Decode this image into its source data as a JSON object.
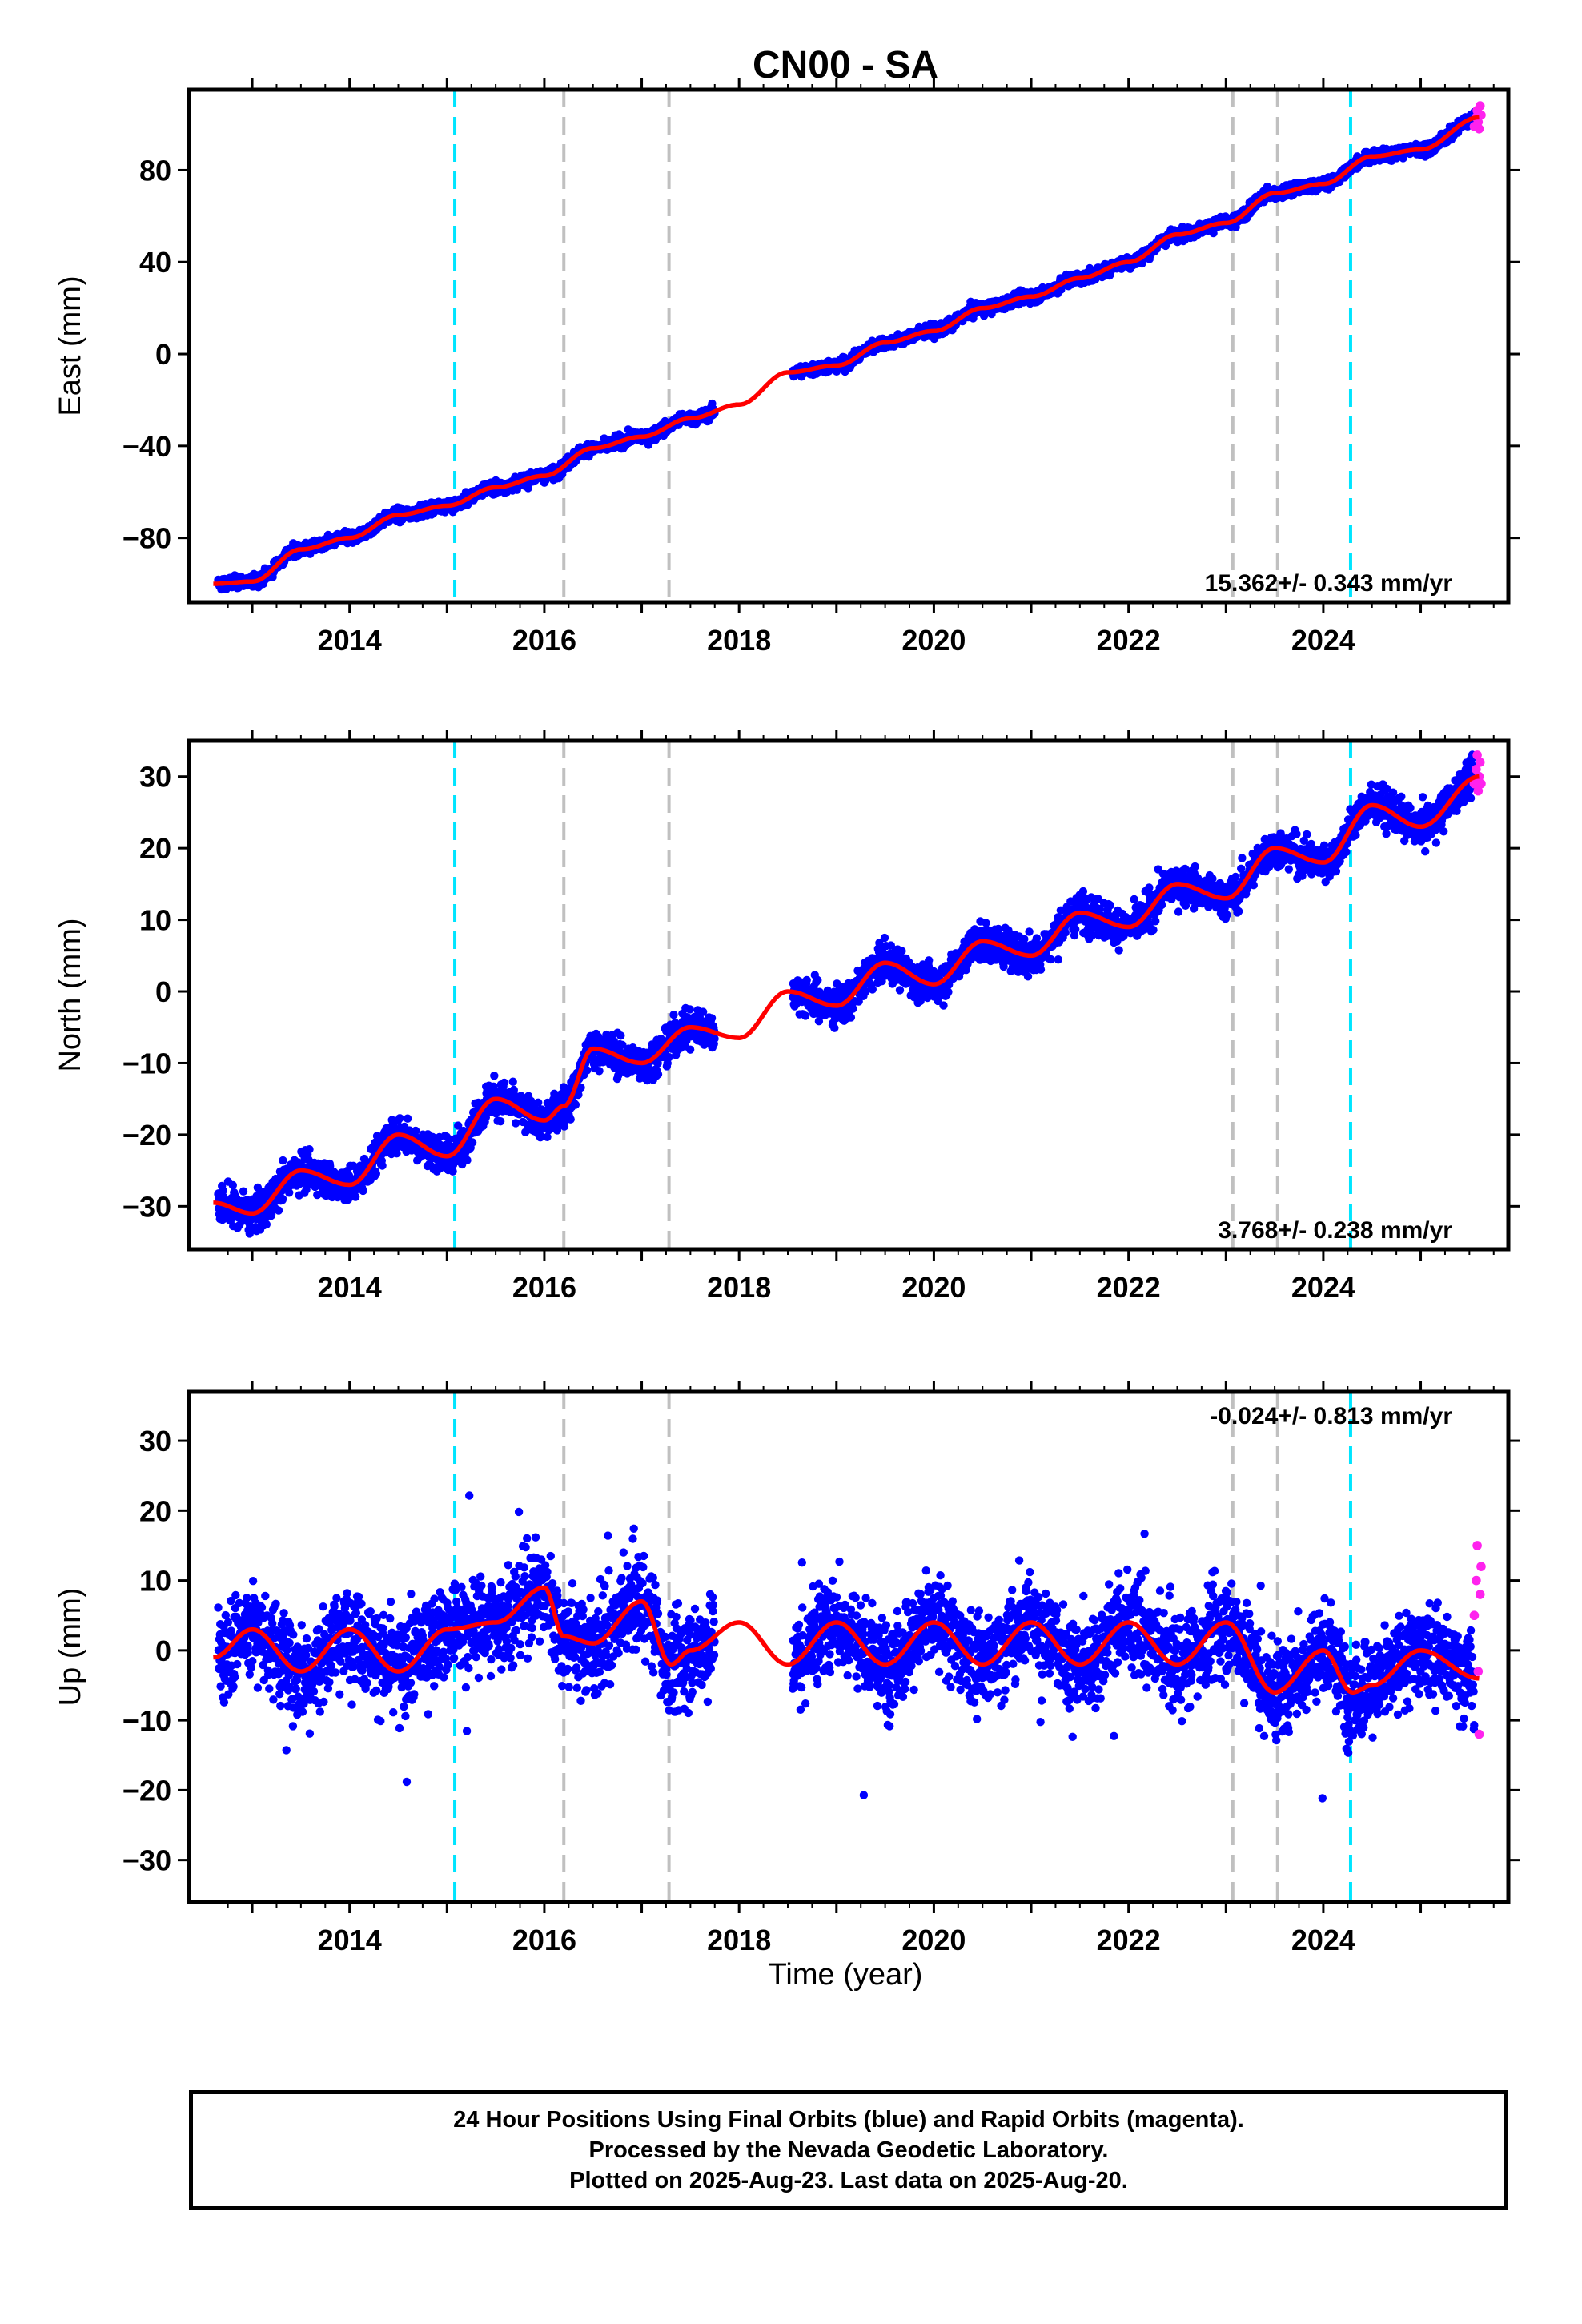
{
  "title": "CN00 - SA",
  "xlabel": "Time (year)",
  "x_tick_labels": [
    "2014",
    "2016",
    "2018",
    "2020",
    "2022",
    "2024"
  ],
  "footer": {
    "line1": "24 Hour Positions Using Final Orbits (blue) and Rapid Orbits (magenta).",
    "line2": "Processed by the Nevada Geodetic Laboratory.",
    "line3": "Plotted on 2025-Aug-23. Last data on 2025-Aug-20."
  },
  "colors": {
    "final_orbits": "#0000ff",
    "rapid_orbits": "#ff22ee",
    "model": "#ff0000",
    "cyan_event": "#00e5ff",
    "gray_event": "#c0c0c0"
  },
  "chart_data": [
    {
      "type": "scatter",
      "ylabel": "East (mm)",
      "xlim": [
        2012.35,
        2025.9
      ],
      "ylim": [
        -108,
        115
      ],
      "yticks": [
        -80,
        -40,
        0,
        40,
        80
      ],
      "rate": "15.362+/- 0.343 mm/yr",
      "cyan_lines": [
        2015.08,
        2024.28
      ],
      "gray_lines": [
        2016.2,
        2017.28,
        2023.07,
        2023.53
      ],
      "data_gap": [
        2017.75,
        2018.55
      ],
      "model_keypoints": [
        [
          2012.6,
          -100
        ],
        [
          2013.0,
          -99
        ],
        [
          2013.5,
          -85
        ],
        [
          2014.0,
          -80
        ],
        [
          2014.5,
          -70
        ],
        [
          2015.0,
          -66
        ],
        [
          2015.5,
          -58
        ],
        [
          2016.0,
          -53
        ],
        [
          2016.5,
          -41
        ],
        [
          2017.0,
          -36
        ],
        [
          2017.5,
          -28
        ],
        [
          2018.0,
          -22
        ],
        [
          2018.5,
          -8
        ],
        [
          2019.0,
          -5
        ],
        [
          2019.5,
          5
        ],
        [
          2020.0,
          10
        ],
        [
          2020.5,
          20
        ],
        [
          2021.0,
          25
        ],
        [
          2021.5,
          33
        ],
        [
          2022.0,
          40
        ],
        [
          2022.5,
          52
        ],
        [
          2023.0,
          57
        ],
        [
          2023.5,
          70
        ],
        [
          2024.0,
          74
        ],
        [
          2024.5,
          86
        ],
        [
          2025.0,
          89
        ],
        [
          2025.6,
          103
        ]
      ],
      "rapid_points": [
        [
          2025.55,
          99
        ],
        [
          2025.57,
          103
        ],
        [
          2025.58,
          106
        ],
        [
          2025.59,
          101
        ],
        [
          2025.6,
          98
        ],
        [
          2025.61,
          108
        ],
        [
          2025.62,
          104
        ]
      ]
    },
    {
      "type": "scatter",
      "ylabel": "North (mm)",
      "xlim": [
        2012.35,
        2025.9
      ],
      "ylim": [
        -36,
        35
      ],
      "yticks": [
        -30,
        -20,
        -10,
        0,
        10,
        20,
        30
      ],
      "rate": "3.768+/- 0.238 mm/yr",
      "cyan_lines": [
        2015.08,
        2024.28
      ],
      "gray_lines": [
        2016.2,
        2017.28,
        2023.07,
        2023.53
      ],
      "data_gap": [
        2017.75,
        2018.55
      ],
      "model_keypoints": [
        [
          2012.6,
          -29.5
        ],
        [
          2013.0,
          -31
        ],
        [
          2013.5,
          -25
        ],
        [
          2014.0,
          -27
        ],
        [
          2014.5,
          -20
        ],
        [
          2015.0,
          -23
        ],
        [
          2015.5,
          -15
        ],
        [
          2016.0,
          -18
        ],
        [
          2016.2,
          -16
        ],
        [
          2016.5,
          -8
        ],
        [
          2017.0,
          -10
        ],
        [
          2017.5,
          -5
        ],
        [
          2018.0,
          -6.5
        ],
        [
          2018.5,
          0
        ],
        [
          2019.0,
          -2
        ],
        [
          2019.5,
          4
        ],
        [
          2020.0,
          1
        ],
        [
          2020.5,
          7
        ],
        [
          2021.0,
          5
        ],
        [
          2021.5,
          11
        ],
        [
          2022.0,
          9
        ],
        [
          2022.5,
          15
        ],
        [
          2023.0,
          13
        ],
        [
          2023.5,
          20
        ],
        [
          2024.0,
          18
        ],
        [
          2024.5,
          26
        ],
        [
          2025.0,
          23
        ],
        [
          2025.6,
          30
        ]
      ],
      "rapid_points": [
        [
          2025.55,
          29
        ],
        [
          2025.57,
          31
        ],
        [
          2025.58,
          33
        ],
        [
          2025.59,
          28
        ],
        [
          2025.6,
          30
        ],
        [
          2025.61,
          32
        ],
        [
          2025.62,
          29
        ]
      ]
    },
    {
      "type": "scatter",
      "ylabel": "Up (mm)",
      "xlim": [
        2012.35,
        2025.9
      ],
      "ylim": [
        -36,
        37
      ],
      "yticks": [
        -30,
        -20,
        -10,
        0,
        10,
        20,
        30
      ],
      "rate": "-0.024+/- 0.813 mm/yr",
      "cyan_lines": [
        2015.08,
        2024.28
      ],
      "gray_lines": [
        2016.2,
        2017.28,
        2023.07,
        2023.53
      ],
      "data_gap": [
        2017.75,
        2018.55
      ],
      "model_keypoints": [
        [
          2012.6,
          -1
        ],
        [
          2013.0,
          3
        ],
        [
          2013.5,
          -3
        ],
        [
          2014.0,
          3
        ],
        [
          2014.5,
          -3
        ],
        [
          2015.0,
          3
        ],
        [
          2015.5,
          4
        ],
        [
          2016.0,
          9
        ],
        [
          2016.2,
          2
        ],
        [
          2016.5,
          1
        ],
        [
          2017.0,
          7
        ],
        [
          2017.3,
          -2
        ],
        [
          2017.5,
          0
        ],
        [
          2018.0,
          4
        ],
        [
          2018.5,
          -2
        ],
        [
          2019.0,
          4
        ],
        [
          2019.5,
          -2
        ],
        [
          2020.0,
          4
        ],
        [
          2020.5,
          -2
        ],
        [
          2021.0,
          4
        ],
        [
          2021.5,
          -2
        ],
        [
          2022.0,
          4
        ],
        [
          2022.5,
          -2
        ],
        [
          2023.0,
          4
        ],
        [
          2023.5,
          -6
        ],
        [
          2024.0,
          0
        ],
        [
          2024.3,
          -6
        ],
        [
          2024.5,
          -5
        ],
        [
          2025.0,
          0
        ],
        [
          2025.6,
          -4
        ]
      ],
      "rapid_points": [
        [
          2025.55,
          5
        ],
        [
          2025.57,
          10
        ],
        [
          2025.58,
          15
        ],
        [
          2025.59,
          -3
        ],
        [
          2025.6,
          -12
        ],
        [
          2025.61,
          8
        ],
        [
          2025.62,
          12
        ]
      ]
    }
  ]
}
